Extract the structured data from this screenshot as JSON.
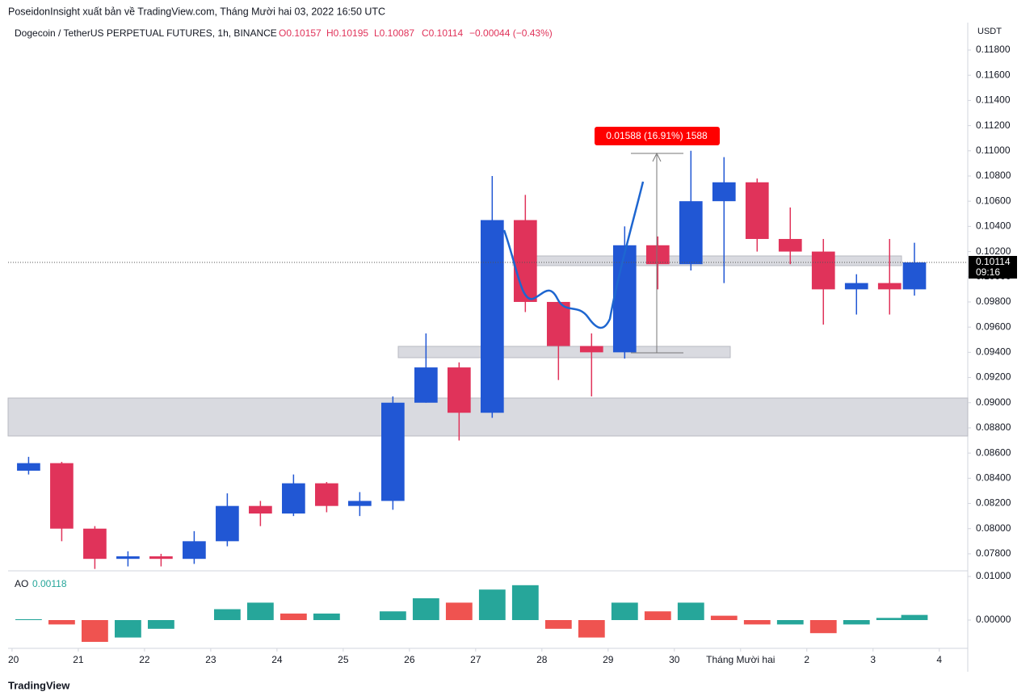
{
  "chart_data": {
    "type": "candlestick",
    "publisher": "PoseidonInsight xuất bản về TradingView.com, Tháng Mười hai 03, 2022 16:50 UTC",
    "title": "Dogecoin / TetherUS PERPETUAL FUTURES, 1h, BINANCE",
    "ohlc_legend": [
      "O0.10157",
      "H0.10195",
      "L0.10087",
      "C0.10114",
      "−0.00044 (−0.43%)"
    ],
    "currency": "USDT",
    "countdown": "09:16",
    "measure_label": "0.01588 (16.91%) 1588",
    "brand": "TradingView",
    "up_color": "#2157d4",
    "down_color": "#e0335a",
    "x": [
      0.25,
      0.75,
      1.25,
      1.75,
      2.25,
      2.75,
      3.25,
      3.75,
      4.25,
      4.75,
      5.25,
      5.75,
      6.25,
      6.75,
      7.25,
      7.75,
      8.25,
      8.75,
      9.25,
      9.75,
      10.25,
      10.75,
      11.25,
      11.75,
      12.25,
      12.75,
      13.25,
      13.625
    ],
    "open": [
      0.0846,
      0.0852,
      0.08,
      0.0776,
      0.0778,
      0.0776,
      0.079,
      0.0818,
      0.0812,
      0.0836,
      0.0818,
      0.0822,
      0.09,
      0.0928,
      0.0892,
      0.1045,
      0.098,
      0.0945,
      0.094,
      0.1025,
      0.101,
      0.106,
      0.1075,
      0.103,
      0.102,
      0.099,
      0.0995,
      0.099
    ],
    "high": [
      0.0857,
      0.0853,
      0.0802,
      0.0782,
      0.078,
      0.0798,
      0.0828,
      0.0822,
      0.0843,
      0.0837,
      0.0829,
      0.0905,
      0.0955,
      0.0932,
      0.108,
      0.1065,
      0.0982,
      0.0955,
      0.104,
      0.1032,
      0.11,
      0.1095,
      0.1078,
      0.1055,
      0.103,
      0.1002,
      0.103,
      0.1027
    ],
    "low": [
      0.0843,
      0.079,
      0.0768,
      0.077,
      0.077,
      0.0772,
      0.0786,
      0.0802,
      0.081,
      0.0813,
      0.081,
      0.0815,
      0.09,
      0.087,
      0.0888,
      0.0972,
      0.0918,
      0.0905,
      0.0935,
      0.099,
      0.1005,
      0.0995,
      0.102,
      0.101,
      0.0962,
      0.097,
      0.097,
      0.0985
    ],
    "close": [
      0.0852,
      0.08,
      0.0776,
      0.0778,
      0.0776,
      0.079,
      0.0818,
      0.0812,
      0.0836,
      0.0818,
      0.0822,
      0.09,
      0.0928,
      0.0892,
      0.1045,
      0.098,
      0.0945,
      0.094,
      0.1025,
      0.101,
      0.106,
      0.1075,
      0.103,
      0.102,
      0.099,
      0.0995,
      0.099,
      0.10114
    ],
    "xlim": [
      -0.06,
      14.43
    ],
    "xticks": [
      {
        "value": 0,
        "label": "20"
      },
      {
        "value": 1,
        "label": "21"
      },
      {
        "value": 2,
        "label": "22"
      },
      {
        "value": 3,
        "label": "23"
      },
      {
        "value": 4,
        "label": "24"
      },
      {
        "value": 5,
        "label": "25"
      },
      {
        "value": 6,
        "label": "26"
      },
      {
        "value": 7,
        "label": "27"
      },
      {
        "value": 8,
        "label": "28"
      },
      {
        "value": 9,
        "label": "29"
      },
      {
        "value": 10,
        "label": "30"
      },
      {
        "value": 11,
        "label": "Tháng Mười hai"
      },
      {
        "value": 12,
        "label": "2"
      },
      {
        "value": 13,
        "label": "3"
      },
      {
        "value": 14,
        "label": "4"
      }
    ],
    "ylim": [
      0.07665,
      0.12018
    ],
    "yticks": [
      {
        "value": 0.078,
        "label": "0.07800"
      },
      {
        "value": 0.08,
        "label": "0.08000"
      },
      {
        "value": 0.082,
        "label": "0.08200"
      },
      {
        "value": 0.084,
        "label": "0.08400"
      },
      {
        "value": 0.086,
        "label": "0.08600"
      },
      {
        "value": 0.088,
        "label": "0.08800"
      },
      {
        "value": 0.09,
        "label": "0.09000"
      },
      {
        "value": 0.092,
        "label": "0.09200"
      },
      {
        "value": 0.094,
        "label": "0.09400"
      },
      {
        "value": 0.096,
        "label": "0.09600"
      },
      {
        "value": 0.098,
        "label": "0.09800"
      },
      {
        "value": 0.1,
        "label": "0.10000"
      },
      {
        "value": 0.102,
        "label": "0.10200"
      },
      {
        "value": 0.104,
        "label": "0.10400"
      },
      {
        "value": 0.106,
        "label": "0.10600"
      },
      {
        "value": 0.108,
        "label": "0.10800"
      },
      {
        "value": 0.11,
        "label": "0.11000"
      },
      {
        "value": 0.112,
        "label": "0.11200"
      },
      {
        "value": 0.114,
        "label": "0.11400"
      },
      {
        "value": 0.116,
        "label": "0.11600"
      },
      {
        "value": 0.118,
        "label": "0.11800"
      }
    ],
    "indicator": {
      "name": "AO",
      "up_color": "#26a69a",
      "down_color": "#ef5350",
      "values": [
        0.0002,
        -0.001,
        -0.005,
        -0.004,
        -0.002,
        0.0,
        0.0025,
        0.004,
        0.0015,
        0.0015,
        0.0,
        0.002,
        0.005,
        0.004,
        0.007,
        0.008,
        -0.002,
        -0.004,
        0.004,
        0.002,
        0.004,
        0.001,
        -0.001,
        -0.001,
        -0.003,
        -0.001,
        0.0005,
        0.00118
      ],
      "y2lim": [
        -0.00648,
        0.0113
      ],
      "y2ticks": [
        {
          "value": 0,
          "label": "0.00000"
        },
        {
          "value": 0.01,
          "label": "0.01000"
        }
      ]
    }
  }
}
